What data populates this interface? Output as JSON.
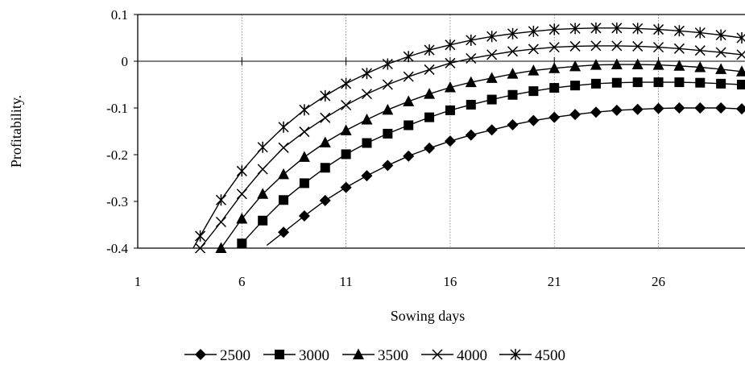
{
  "chart_data": {
    "type": "line",
    "title": "",
    "xlabel": "Sowing days",
    "ylabel": "Profitability.",
    "xlim": [
      1,
      30
    ],
    "ylim": [
      -0.4,
      0.1
    ],
    "xticks": [
      1,
      6,
      11,
      16,
      21,
      26
    ],
    "yticks": [
      0.1,
      0,
      -0.1,
      -0.2,
      -0.3,
      -0.4
    ],
    "ytick_labels": [
      "0.1",
      "0",
      "-0.1",
      "-0.2",
      "-0.3",
      "-0.4"
    ],
    "grid": "vertical",
    "legend_position": "bottom",
    "series": [
      {
        "name": "2500",
        "marker": "diamond",
        "x": [
          8,
          9,
          10,
          11,
          12,
          13,
          14,
          15,
          16,
          17,
          18,
          19,
          20,
          21,
          22,
          23,
          24,
          25,
          26,
          27,
          28,
          29,
          30
        ],
        "values": [
          -0.366,
          -0.331,
          -0.298,
          -0.27,
          -0.245,
          -0.223,
          -0.203,
          -0.186,
          -0.171,
          -0.158,
          -0.147,
          -0.136,
          -0.127,
          -0.12,
          -0.114,
          -0.109,
          -0.105,
          -0.103,
          -0.101,
          -0.1,
          -0.1,
          -0.1,
          -0.102
        ]
      },
      {
        "name": "3000",
        "marker": "square",
        "x": [
          6,
          7,
          8,
          9,
          10,
          11,
          12,
          13,
          14,
          15,
          16,
          17,
          18,
          19,
          20,
          21,
          22,
          23,
          24,
          25,
          26,
          27,
          28,
          29,
          30
        ],
        "values": [
          -0.39,
          -0.341,
          -0.297,
          -0.261,
          -0.228,
          -0.199,
          -0.175,
          -0.155,
          -0.137,
          -0.12,
          -0.105,
          -0.093,
          -0.082,
          -0.072,
          -0.064,
          -0.057,
          -0.052,
          -0.048,
          -0.046,
          -0.045,
          -0.045,
          -0.045,
          -0.046,
          -0.048,
          -0.05
        ]
      },
      {
        "name": "3500",
        "marker": "triangle",
        "x": [
          5,
          6,
          7,
          8,
          9,
          10,
          11,
          12,
          13,
          14,
          15,
          16,
          17,
          18,
          19,
          20,
          21,
          22,
          23,
          24,
          25,
          26,
          27,
          28,
          29,
          30
        ],
        "values": [
          -0.4,
          -0.337,
          -0.284,
          -0.242,
          -0.205,
          -0.174,
          -0.148,
          -0.125,
          -0.104,
          -0.086,
          -0.07,
          -0.056,
          -0.045,
          -0.036,
          -0.027,
          -0.02,
          -0.015,
          -0.011,
          -0.008,
          -0.007,
          -0.007,
          -0.008,
          -0.01,
          -0.013,
          -0.017,
          -0.022
        ]
      },
      {
        "name": "4000",
        "marker": "x",
        "x": [
          4,
          5,
          6,
          7,
          8,
          9,
          10,
          11,
          12,
          13,
          14,
          15,
          16,
          17,
          18,
          19,
          20,
          21,
          22,
          23,
          24,
          25,
          26,
          27,
          28,
          29,
          30
        ],
        "values": [
          -0.4,
          -0.344,
          -0.284,
          -0.231,
          -0.185,
          -0.151,
          -0.121,
          -0.094,
          -0.07,
          -0.05,
          -0.033,
          -0.018,
          -0.004,
          0.006,
          0.014,
          0.021,
          0.026,
          0.03,
          0.032,
          0.033,
          0.033,
          0.032,
          0.03,
          0.027,
          0.023,
          0.019,
          0.014
        ]
      },
      {
        "name": "4500",
        "marker": "asterisk",
        "x": [
          4,
          5,
          6,
          7,
          8,
          9,
          10,
          11,
          12,
          13,
          14,
          15,
          16,
          17,
          18,
          19,
          20,
          21,
          22,
          23,
          24,
          25,
          26,
          27,
          28,
          29,
          30
        ],
        "values": [
          -0.374,
          -0.297,
          -0.235,
          -0.184,
          -0.141,
          -0.104,
          -0.074,
          -0.048,
          -0.026,
          -0.006,
          0.01,
          0.024,
          0.035,
          0.045,
          0.053,
          0.059,
          0.064,
          0.068,
          0.07,
          0.071,
          0.071,
          0.07,
          0.068,
          0.065,
          0.061,
          0.056,
          0.05
        ]
      }
    ]
  }
}
